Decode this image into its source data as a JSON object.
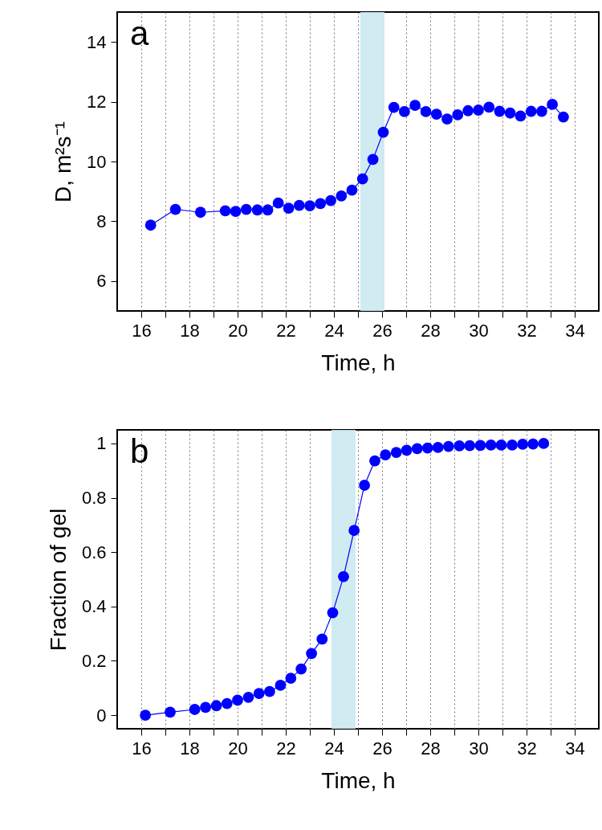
{
  "chart_data": [
    {
      "type": "line",
      "xlabel": "Time, h",
      "ylabel": "D, m²s⁻¹",
      "annotations": [
        "a"
      ],
      "x": [
        16.39,
        17.42,
        18.46,
        19.49,
        19.92,
        20.36,
        20.82,
        21.25,
        21.69,
        22.12,
        22.56,
        23.0,
        23.44,
        23.87,
        24.31,
        24.75,
        25.19,
        25.62,
        26.05,
        26.49,
        26.93,
        27.37,
        27.82,
        28.26,
        28.7,
        29.14,
        29.57,
        30.0,
        30.44,
        30.88,
        31.32,
        31.75,
        32.19,
        32.63,
        33.07,
        33.53
      ],
      "series": [
        {
          "color": "#0000ff",
          "values": [
            7.87,
            8.4,
            8.3,
            8.35,
            8.33,
            8.4,
            8.38,
            8.38,
            8.61,
            8.44,
            8.53,
            8.52,
            8.59,
            8.69,
            8.85,
            9.04,
            9.42,
            10.07,
            10.98,
            11.81,
            11.67,
            11.88,
            11.67,
            11.58,
            11.42,
            11.56,
            11.7,
            11.72,
            11.82,
            11.68,
            11.62,
            11.52,
            11.68,
            11.68,
            11.91,
            11.49
          ]
        }
      ],
      "xlim": [
        15,
        35
      ],
      "ylim": [
        5,
        15
      ],
      "xticks": [
        16,
        {
          "value": 17,
          "label": null
        },
        18,
        {
          "value": 19,
          "label": null
        },
        20,
        {
          "value": 21,
          "label": null
        },
        22,
        {
          "value": 23,
          "label": null
        },
        24,
        {
          "value": 25,
          "label": null
        },
        26,
        {
          "value": 27,
          "label": null
        },
        28,
        {
          "value": 29,
          "label": null
        },
        30,
        {
          "value": 31,
          "label": null
        },
        32,
        {
          "value": 33,
          "label": null
        },
        34
      ],
      "yticks": [
        6,
        8,
        10,
        12,
        14
      ],
      "grid": "x",
      "marker": "circle",
      "bands": [
        {
          "axis": "x",
          "from": 25.1,
          "to": 26.1,
          "color": "#cbe9ef"
        }
      ]
    },
    {
      "type": "line",
      "xlabel": "Time, h",
      "ylabel": "Fraction of gel",
      "annotations": [
        "b"
      ],
      "x": [
        16.17,
        17.2,
        18.22,
        18.67,
        19.12,
        19.56,
        20.0,
        20.45,
        20.89,
        21.33,
        21.78,
        22.21,
        22.64,
        23.07,
        23.51,
        23.95,
        24.4,
        24.84,
        25.27,
        25.7,
        26.14,
        26.59,
        27.02,
        27.46,
        27.89,
        28.32,
        28.76,
        29.21,
        29.64,
        30.08,
        30.52,
        30.95,
        31.4,
        31.84,
        32.27,
        32.71
      ],
      "series": [
        {
          "color": "#0000ff",
          "values": [
            0.0,
            0.011,
            0.021,
            0.029,
            0.035,
            0.043,
            0.055,
            0.066,
            0.08,
            0.087,
            0.11,
            0.136,
            0.17,
            0.227,
            0.28,
            0.377,
            0.51,
            0.68,
            0.846,
            0.936,
            0.958,
            0.967,
            0.975,
            0.981,
            0.983,
            0.985,
            0.989,
            0.991,
            0.992,
            0.993,
            0.994,
            0.994,
            0.994,
            0.997,
            0.998,
            1.0
          ]
        }
      ],
      "xlim": [
        15,
        35
      ],
      "ylim": [
        -0.05,
        1.05
      ],
      "xticks": [
        16,
        {
          "value": 17,
          "label": null
        },
        18,
        {
          "value": 19,
          "label": null
        },
        20,
        {
          "value": 21,
          "label": null
        },
        22,
        {
          "value": 23,
          "label": null
        },
        24,
        {
          "value": 25,
          "label": null
        },
        26,
        {
          "value": 27,
          "label": null
        },
        28,
        {
          "value": 29,
          "label": null
        },
        30,
        {
          "value": 31,
          "label": null
        },
        32,
        {
          "value": 33,
          "label": null
        },
        34
      ],
      "yticks": [
        0,
        0.2,
        0.4,
        0.6,
        0.8,
        1
      ],
      "grid": "x",
      "marker": "circle",
      "bands": [
        {
          "axis": "x",
          "from": 23.9,
          "to": 24.9,
          "color": "#cbe9ef"
        }
      ]
    }
  ]
}
